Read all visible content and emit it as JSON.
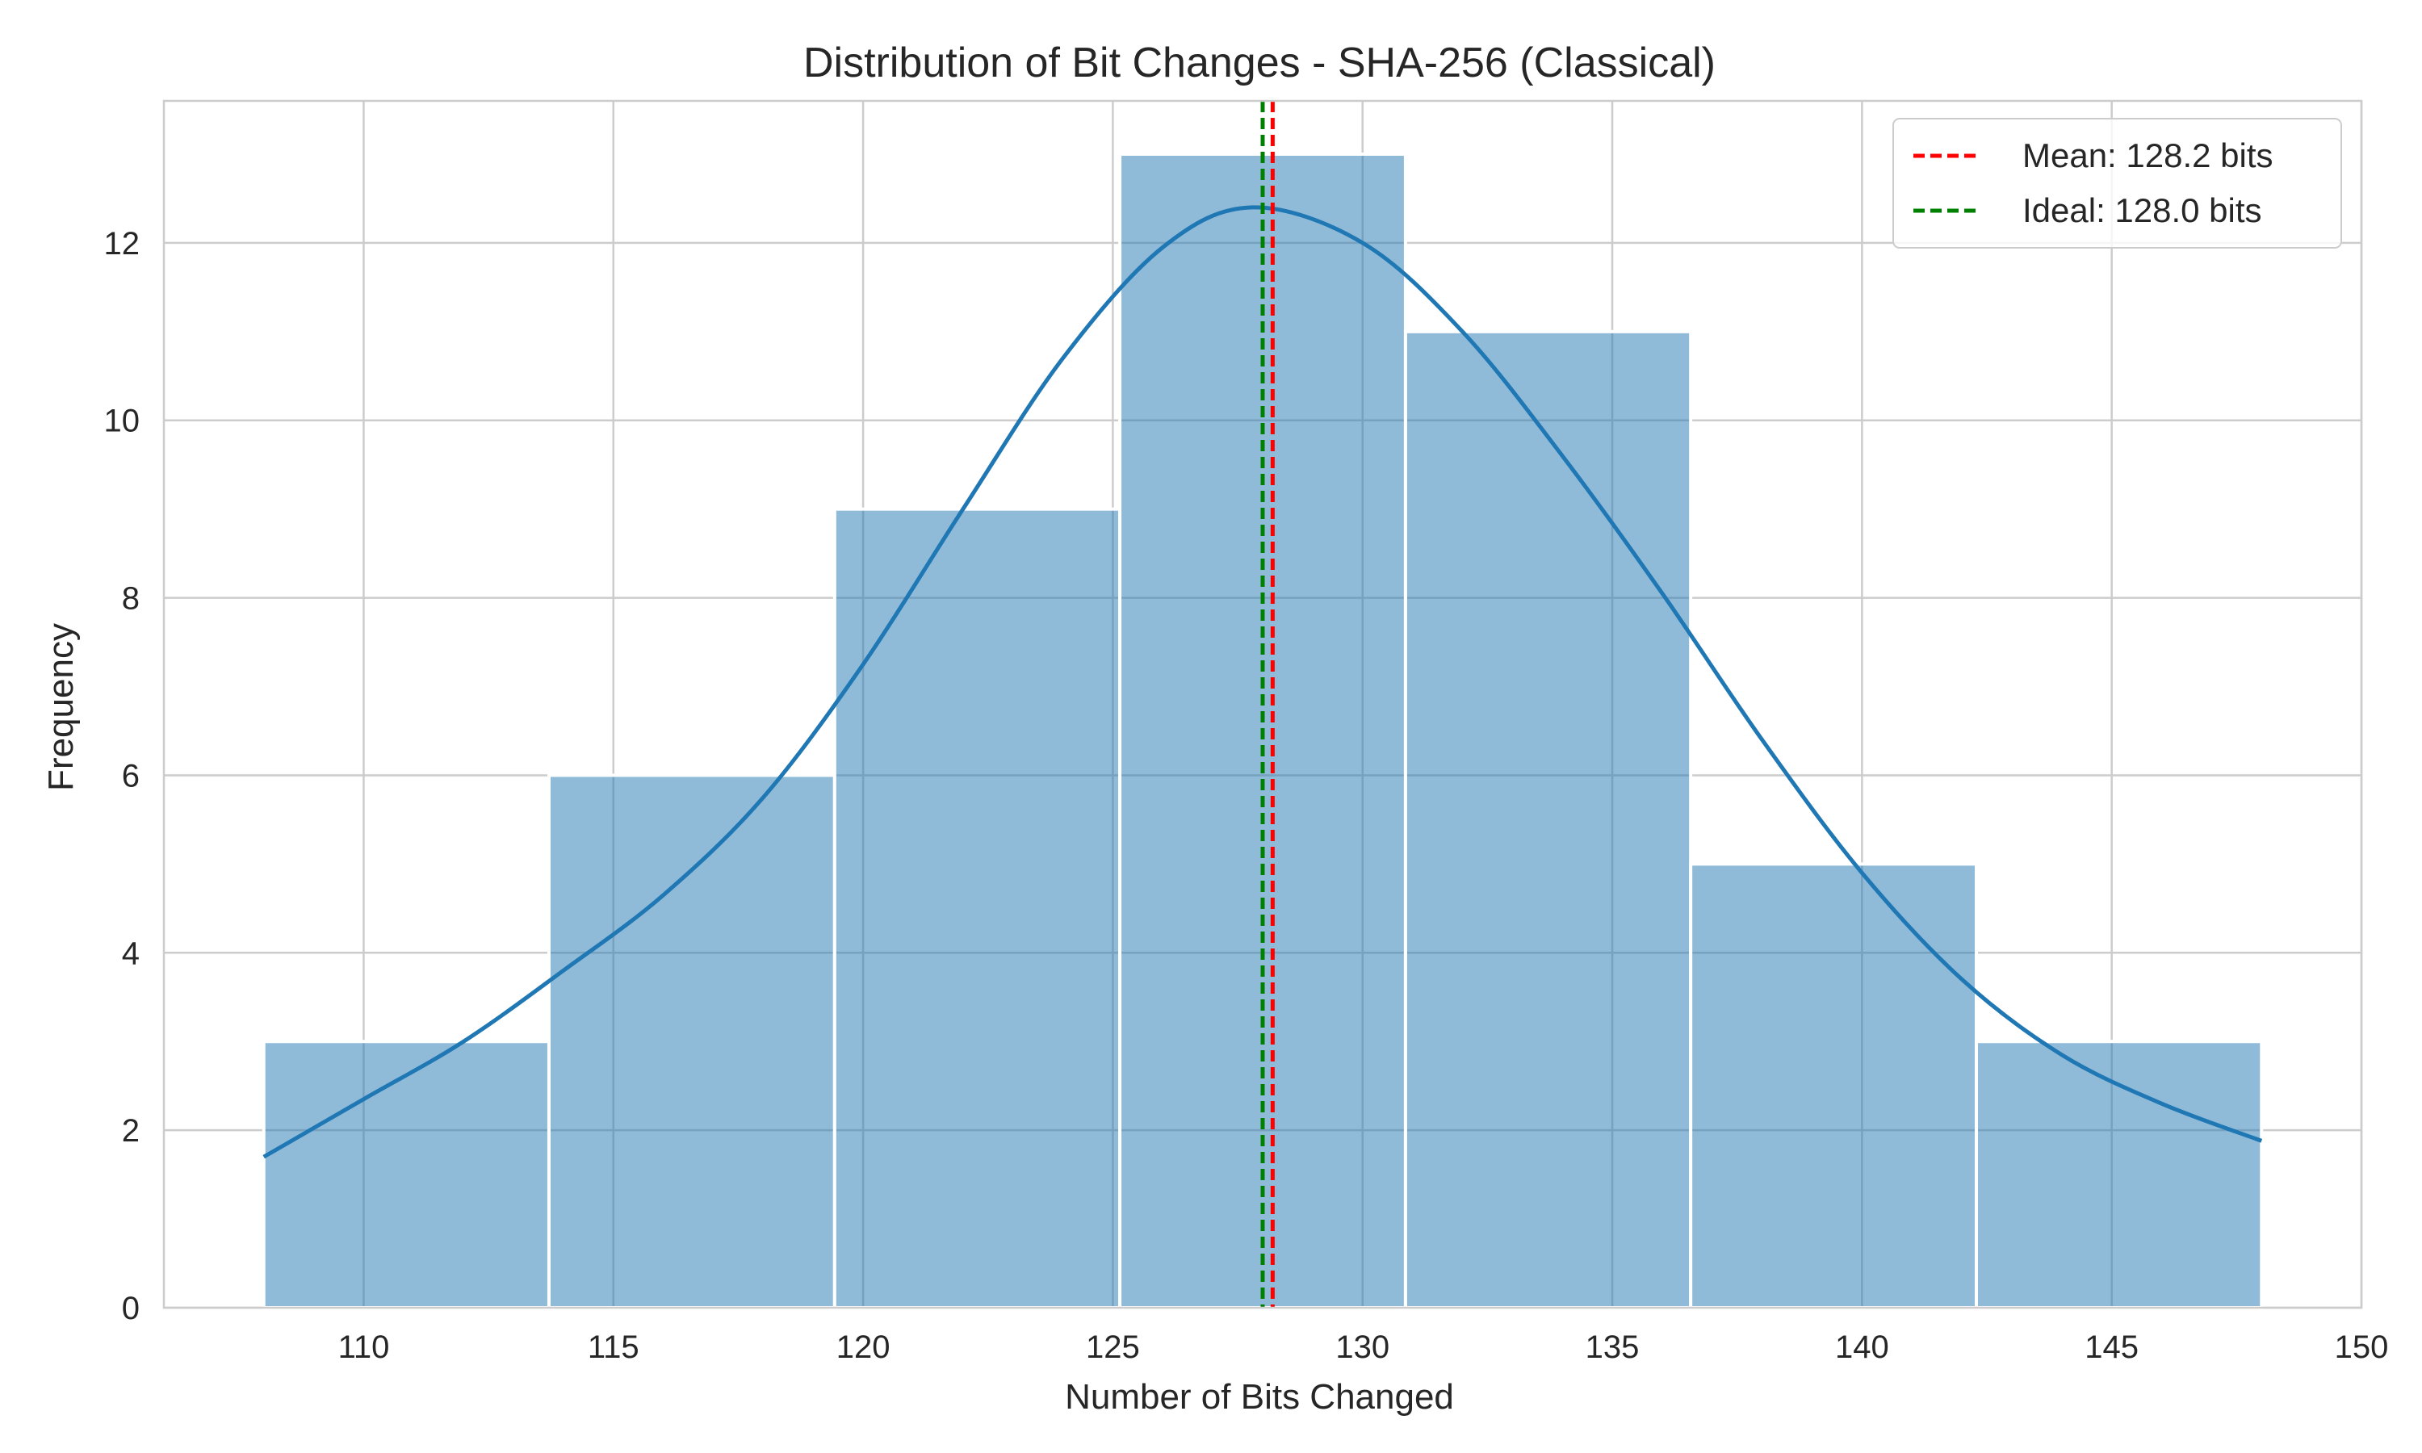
{
  "chart_data": {
    "type": "bar",
    "title": "Distribution of Bit Changes - SHA-256 (Classical)",
    "xlabel": "Number of Bits Changed",
    "ylabel": "Frequency",
    "xlim": [
      106,
      150
    ],
    "ylim": [
      0,
      13.6
    ],
    "x_ticks": [
      110,
      115,
      120,
      125,
      130,
      135,
      140,
      145,
      150
    ],
    "y_ticks": [
      0,
      2,
      4,
      6,
      8,
      10,
      12
    ],
    "grid": true,
    "bins": [
      {
        "start": 108.0,
        "end": 113.71,
        "count": 3
      },
      {
        "start": 113.71,
        "end": 119.43,
        "count": 6
      },
      {
        "start": 119.43,
        "end": 125.14,
        "count": 9
      },
      {
        "start": 125.14,
        "end": 130.86,
        "count": 13
      },
      {
        "start": 130.86,
        "end": 136.57,
        "count": 11
      },
      {
        "start": 136.57,
        "end": 142.29,
        "count": 5
      },
      {
        "start": 142.29,
        "end": 148.0,
        "count": 3
      }
    ],
    "kde": {
      "x": [
        108,
        110,
        112,
        114,
        116,
        118,
        120,
        122,
        124,
        126,
        127.8,
        130,
        132,
        134,
        136,
        138,
        140,
        142,
        144,
        146,
        148
      ],
      "y": [
        1.7,
        2.35,
        3.0,
        3.8,
        4.65,
        5.75,
        7.25,
        9.0,
        10.7,
        11.95,
        12.4,
        12.0,
        11.0,
        9.6,
        8.05,
        6.4,
        4.9,
        3.7,
        2.85,
        2.3,
        1.88
      ]
    },
    "reference_lines": [
      {
        "label": "Mean: 128.2 bits",
        "value": 128.2,
        "color": "#ff0000"
      },
      {
        "label": "Ideal: 128.0 bits",
        "value": 128.0,
        "color": "#008000"
      }
    ],
    "legend_position": "top-right",
    "colors": {
      "bar_fill": "#1f77b4",
      "bar_opacity": 0.5,
      "kde_line": "#1f77b4",
      "grid": "#cccccc",
      "axis": "#cccccc",
      "text": "#262626"
    }
  }
}
